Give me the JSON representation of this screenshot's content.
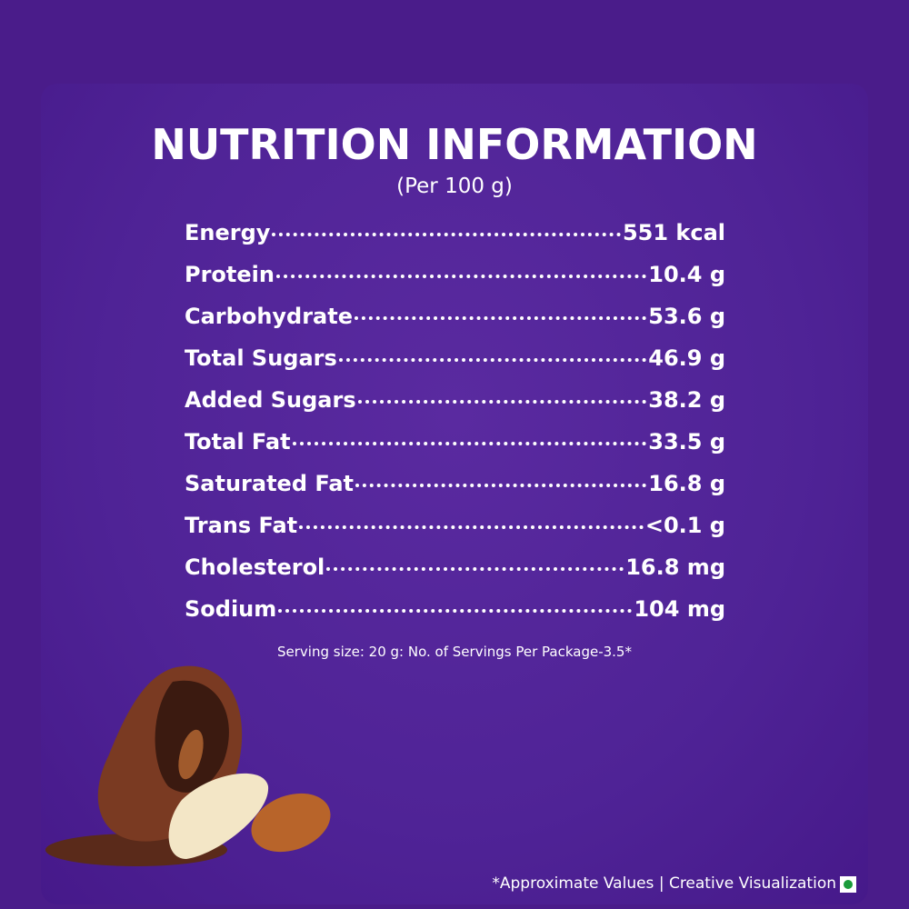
{
  "header": {
    "title": "NUTRITION INFORMATION",
    "subtitle": "(Per 100 g)"
  },
  "table": {
    "rows": [
      [
        "Energy",
        "551 kcal"
      ],
      [
        "Protein",
        "10.4 g"
      ],
      [
        "Carbohydrate",
        "53.6 g"
      ],
      [
        "Total Sugars",
        "46.9 g"
      ],
      [
        "Added Sugars",
        "38.2 g"
      ],
      [
        "Total Fat",
        "33.5 g"
      ],
      [
        "Saturated Fat",
        "16.8 g"
      ],
      [
        "Trans Fat",
        "<0.1 g"
      ],
      [
        "Cholesterol",
        "16.8 mg"
      ],
      [
        "Sodium",
        "104 mg"
      ]
    ]
  },
  "serving_note": "Serving size: 20 g: No. of Servings Per Package-3.5*",
  "footer": "*Approximate Values | Creative Visualization"
}
